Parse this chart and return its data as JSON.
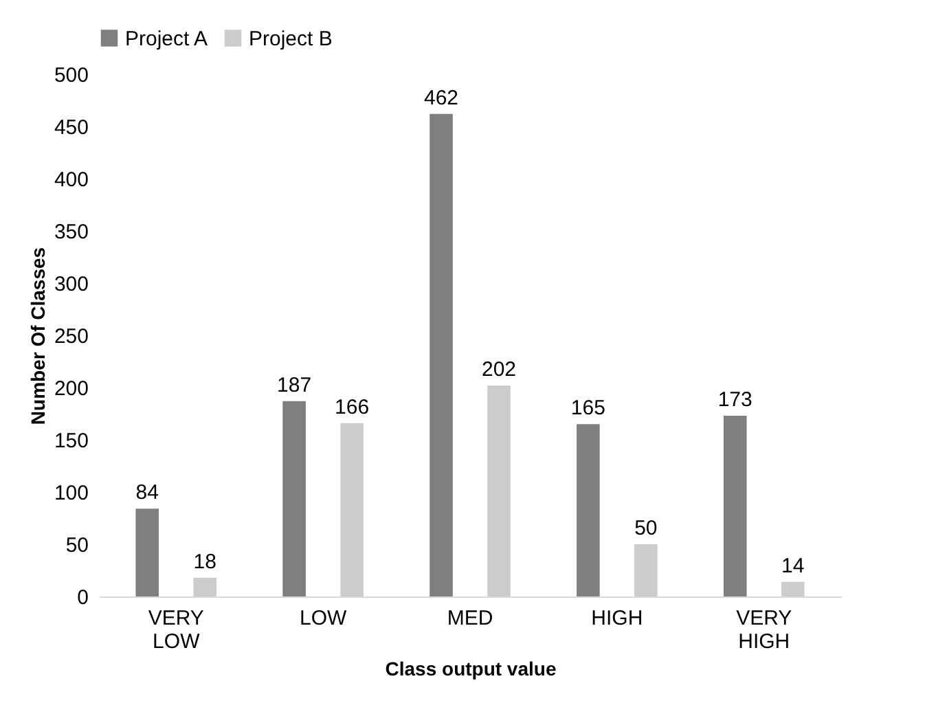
{
  "chart_data": {
    "type": "bar",
    "xlabel": "Class output value",
    "ylabel": "Number Of Classes",
    "categories": [
      "VERY LOW",
      "LOW",
      "MED",
      "HIGH",
      "VERY HIGH"
    ],
    "series": [
      {
        "name": "Project A",
        "color": "#7f7f7f",
        "values": [
          84,
          187,
          462,
          165,
          173
        ]
      },
      {
        "name": "Project B",
        "color": "#cccccc",
        "values": [
          18,
          166,
          202,
          50,
          14
        ]
      }
    ],
    "ylim": [
      0,
      500
    ],
    "yticks": [
      0,
      50,
      100,
      150,
      200,
      250,
      300,
      350,
      400,
      450,
      500
    ],
    "data_labels": true,
    "grid": false,
    "legend": "top"
  }
}
